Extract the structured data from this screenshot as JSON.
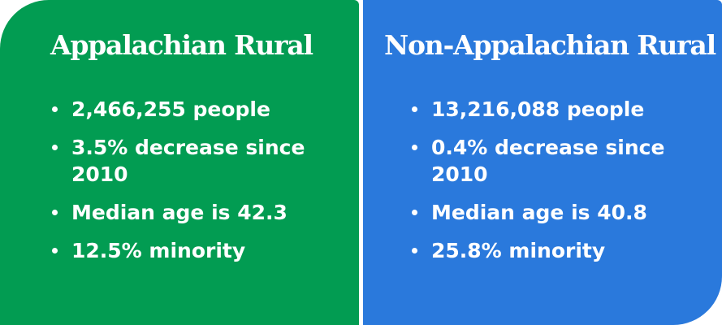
{
  "colors": {
    "left_panel": "#029c52",
    "right_panel": "#2a79dc",
    "text": "#ffffff"
  },
  "panels": [
    {
      "title": "Appalachian Rural",
      "items": [
        "2,466,255 people",
        "3.5% decrease since 2010",
        "Median age is 42.3",
        "12.5% minority"
      ]
    },
    {
      "title": "Non-Appalachian Rural",
      "items": [
        "13,216,088 people",
        "0.4% decrease since 2010",
        "Median age is 40.8",
        "25.8% minority"
      ]
    }
  ]
}
